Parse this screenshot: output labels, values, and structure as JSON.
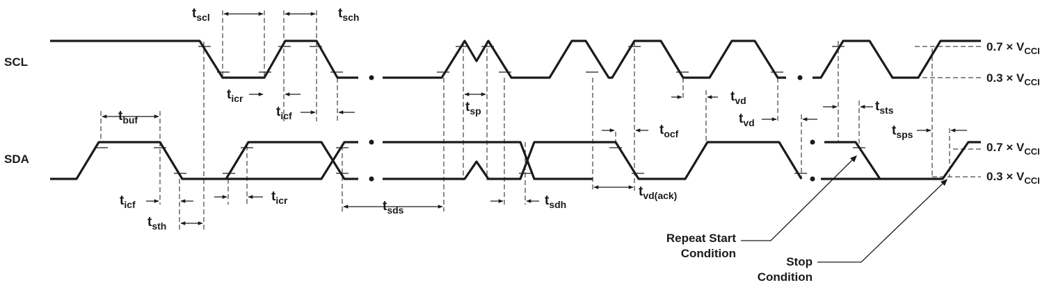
{
  "signals": {
    "scl": "SCL",
    "sda": "SDA"
  },
  "levels": {
    "scl_high": "0.7 × V",
    "scl_high_sub": "CCI",
    "scl_low": "0.3 × V",
    "scl_low_sub": "CCI",
    "sda_high": "0.7 × V",
    "sda_high_sub": "CCI",
    "sda_low": "0.3 × V",
    "sda_low_sub": "CCI"
  },
  "timing": {
    "t_scl": {
      "base": "t",
      "sub": "scl"
    },
    "t_sch": {
      "base": "t",
      "sub": "sch"
    },
    "t_icr_scl": {
      "base": "t",
      "sub": "icr"
    },
    "t_icf_scl": {
      "base": "t",
      "sub": "icf"
    },
    "t_buf": {
      "base": "t",
      "sub": "buf"
    },
    "t_sp": {
      "base": "t",
      "sub": "sp"
    },
    "t_vd": {
      "base": "t",
      "sub": "vd"
    },
    "t_vd2": {
      "base": "t",
      "sub": "vd"
    },
    "t_ocf": {
      "base": "t",
      "sub": "ocf"
    },
    "t_sts": {
      "base": "t",
      "sub": "sts"
    },
    "t_sps": {
      "base": "t",
      "sub": "sps"
    },
    "t_icf_sda": {
      "base": "t",
      "sub": "icf"
    },
    "t_icr_sda": {
      "base": "t",
      "sub": "icr"
    },
    "t_sth": {
      "base": "t",
      "sub": "sth"
    },
    "t_sds": {
      "base": "t",
      "sub": "sds"
    },
    "t_sdh": {
      "base": "t",
      "sub": "sdh"
    },
    "t_vdack": {
      "base": "t",
      "sub": "vd(ack)"
    }
  },
  "callouts": {
    "repeat_start_1": "Repeat Start",
    "repeat_start_2": "Condition",
    "stop_1": "Stop",
    "stop_2": "Condition"
  }
}
